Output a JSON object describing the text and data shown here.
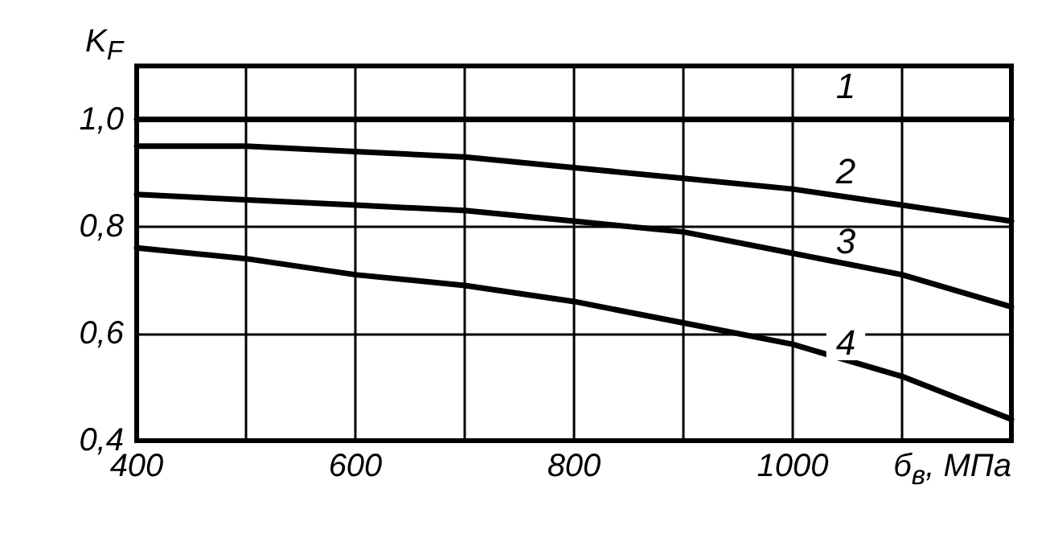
{
  "chart_data": {
    "type": "line",
    "xlabel": "б$_{в}$, МПа",
    "ylabel": "K$_{F}$",
    "x": [
      400,
      500,
      600,
      700,
      800,
      900,
      1000,
      1100,
      1200
    ],
    "xlim": [
      400,
      1200
    ],
    "xticks": [
      400,
      {
        "value": 500,
        "label": null
      },
      600,
      {
        "value": 700,
        "label": null
      },
      800,
      {
        "value": 900,
        "label": null
      },
      1000,
      {
        "value": 1100,
        "label": null
      },
      {
        "value": 1200,
        "label": null
      }
    ],
    "ylim": [
      0.4,
      1.1
    ],
    "yticks": [
      {
        "value": 0.4,
        "label": "0,4"
      },
      {
        "value": 0.6,
        "label": "0,6"
      },
      {
        "value": 0.8,
        "label": "0,8"
      },
      {
        "value": 1.0,
        "label": "1,0"
      }
    ],
    "series": [
      {
        "name": "1",
        "color": "#000000",
        "values": [
          1.0,
          1.0,
          1.0,
          1.0,
          1.0,
          1.0,
          1.0,
          1.0,
          1.0
        ]
      },
      {
        "name": "2",
        "color": "#000000",
        "values": [
          0.95,
          0.95,
          0.94,
          0.93,
          0.91,
          0.89,
          0.87,
          0.84,
          0.81
        ]
      },
      {
        "name": "3",
        "color": "#000000",
        "values": [
          0.86,
          0.85,
          0.84,
          0.83,
          0.81,
          0.79,
          0.75,
          0.71,
          0.65
        ]
      },
      {
        "name": "4",
        "color": "#000000",
        "values": [
          0.76,
          0.74,
          0.71,
          0.69,
          0.66,
          0.62,
          0.58,
          0.52,
          0.44
        ]
      }
    ],
    "grid": true,
    "legend": false,
    "marker": "none",
    "line_style": "solid"
  }
}
